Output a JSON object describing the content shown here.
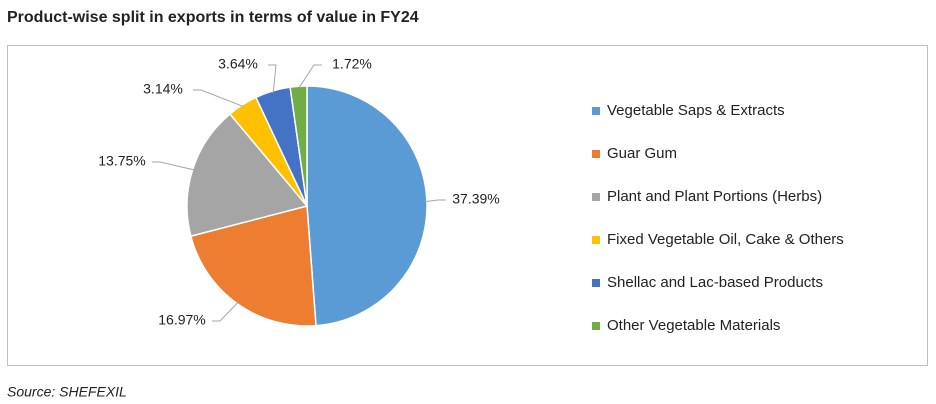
{
  "chart_data": {
    "type": "pie",
    "title": "Product-wise split in exports in terms of value in FY24",
    "categories": [
      "Vegetable Saps & Extracts",
      "Guar Gum",
      "Plant and Plant Portions (Herbs)",
      "Fixed Vegetable Oil, Cake & Others",
      "Shellac and Lac-based Products",
      "Other Vegetable Materials"
    ],
    "values": [
      37.39,
      16.97,
      13.75,
      3.14,
      3.64,
      1.72
    ],
    "value_labels": [
      "37.39%",
      "16.97%",
      "13.75%",
      "3.14%",
      "3.64%",
      "1.72%"
    ],
    "colors": [
      "#5b9bd5",
      "#ed7d31",
      "#a5a5a5",
      "#ffc000",
      "#4472c4",
      "#70ad47"
    ],
    "source": "Source: SHEFEXIL"
  }
}
